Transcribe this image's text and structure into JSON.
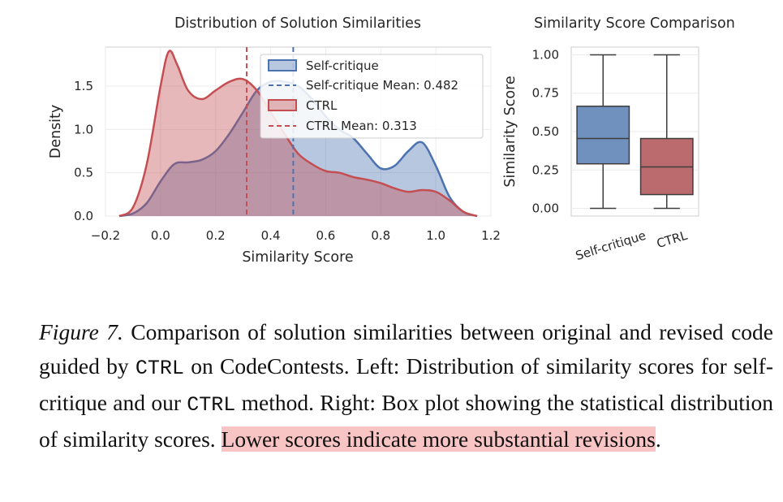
{
  "chart_data": [
    {
      "type": "area",
      "title": "Distribution of Solution Similarities",
      "xlabel": "Similarity Score",
      "ylabel": "Density",
      "xlim": [
        -0.2,
        1.2
      ],
      "ylim": [
        0,
        1.95
      ],
      "xticks": [
        "−0.2",
        "0.0",
        "0.2",
        "0.4",
        "0.6",
        "0.8",
        "1.0",
        "1.2"
      ],
      "xtick_values": [
        -0.2,
        0.0,
        0.2,
        0.4,
        0.6,
        0.8,
        1.0,
        1.2
      ],
      "yticks": [
        "0.0",
        "0.5",
        "1.0",
        "1.5"
      ],
      "ytick_values": [
        0.0,
        0.5,
        1.0,
        1.5
      ],
      "grid": true,
      "legend_position": "top-right",
      "series": [
        {
          "name": "Self-critique",
          "color": "#4c72b0",
          "x": [
            -0.15,
            -0.1,
            -0.05,
            0.0,
            0.05,
            0.1,
            0.15,
            0.2,
            0.25,
            0.3,
            0.35,
            0.4,
            0.45,
            0.5,
            0.55,
            0.6,
            0.65,
            0.7,
            0.75,
            0.8,
            0.85,
            0.9,
            0.95,
            1.0,
            1.05,
            1.1,
            1.15
          ],
          "y": [
            0.0,
            0.03,
            0.15,
            0.4,
            0.6,
            0.62,
            0.65,
            0.75,
            0.95,
            1.2,
            1.45,
            1.55,
            1.55,
            1.5,
            1.35,
            1.15,
            1.0,
            0.9,
            0.72,
            0.55,
            0.58,
            0.75,
            0.85,
            0.58,
            0.22,
            0.05,
            0.0
          ]
        },
        {
          "name": "CTRL",
          "color": "#c44e52",
          "x": [
            -0.15,
            -0.1,
            -0.05,
            0.0,
            0.03,
            0.06,
            0.1,
            0.15,
            0.2,
            0.25,
            0.3,
            0.35,
            0.4,
            0.45,
            0.5,
            0.55,
            0.6,
            0.65,
            0.7,
            0.75,
            0.8,
            0.85,
            0.9,
            0.95,
            1.0,
            1.05,
            1.1,
            1.15
          ],
          "y": [
            0.0,
            0.1,
            0.6,
            1.5,
            1.9,
            1.75,
            1.45,
            1.35,
            1.45,
            1.55,
            1.58,
            1.45,
            1.2,
            0.95,
            0.72,
            0.6,
            0.52,
            0.5,
            0.45,
            0.42,
            0.38,
            0.32,
            0.28,
            0.3,
            0.28,
            0.18,
            0.05,
            0.0
          ]
        }
      ],
      "mean_lines": [
        {
          "name": "Self-critique Mean: 0.482",
          "value": 0.482,
          "color": "#4c72b0"
        },
        {
          "name": "CTRL Mean: 0.313",
          "value": 0.313,
          "color": "#c44e52"
        }
      ]
    },
    {
      "type": "box",
      "title": "Similarity Score Comparison",
      "ylabel": "Similarity Score",
      "ylim": [
        -0.05,
        1.05
      ],
      "yticks": [
        "0.00",
        "0.25",
        "0.50",
        "0.75",
        "1.00"
      ],
      "ytick_values": [
        0.0,
        0.25,
        0.5,
        0.75,
        1.0
      ],
      "categories": [
        "Self-critique",
        "CTRL"
      ],
      "boxes": [
        {
          "name": "Self-critique",
          "min": 0.0,
          "q1": 0.29,
          "median": 0.455,
          "q3": 0.665,
          "max": 1.0,
          "color": "#7090bd"
        },
        {
          "name": "CTRL",
          "min": 0.0,
          "q1": 0.09,
          "median": 0.27,
          "q3": 0.455,
          "max": 1.0,
          "color": "#bb6b6e"
        }
      ],
      "grid": true
    }
  ],
  "caption": {
    "label": "Figure 7.",
    "p1": " Comparison of solution similarities between original and revised code guided by ",
    "ctrl1": "CTRL",
    "p2": " on CodeContests. Left: Distribution of similarity scores for self-critique and our ",
    "ctrl2": "CTRL",
    "p3": " method. Right: Box plot showing the statistical distribution of similarity scores. ",
    "highlight": "Lower scores indicate more substantial revisions",
    "end": "."
  }
}
